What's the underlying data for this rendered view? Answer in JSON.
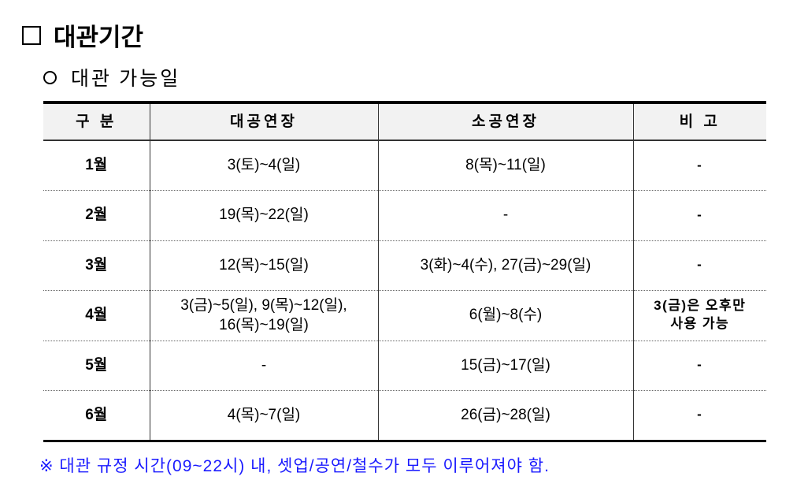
{
  "title": "대관기간",
  "subtitle": "대관 가능일",
  "table": {
    "headers": [
      "구 분",
      "대공연장",
      "소공연장",
      "비 고"
    ],
    "rows": [
      {
        "month": "1월",
        "large": "3(토)~4(일)",
        "small": "8(목)~11(일)",
        "note": "-"
      },
      {
        "month": "2월",
        "large": "19(목)~22(일)",
        "small": "-",
        "note": "-"
      },
      {
        "month": "3월",
        "large": "12(목)~15(일)",
        "small": "3(화)~4(수), 27(금)~29(일)",
        "note": "-"
      },
      {
        "month": "4월",
        "large": "3(금)~5(일), 9(목)~12(일),\n16(목)~19(일)",
        "small": "6(월)~8(수)",
        "note": "3(금)은 오후만\n사용 가능"
      },
      {
        "month": "5월",
        "large": "-",
        "small": "15(금)~17(일)",
        "note": "-"
      },
      {
        "month": "6월",
        "large": "4(목)~7(일)",
        "small": "26(금)~28(일)",
        "note": "-"
      }
    ]
  },
  "footnote": "※ 대관 규정 시간(09~22시) 내, 셋업/공연/철수가 모두 이루어져야 함.",
  "colors": {
    "footnote": "#1a1aff",
    "header_bg": "#f2f2f2"
  }
}
